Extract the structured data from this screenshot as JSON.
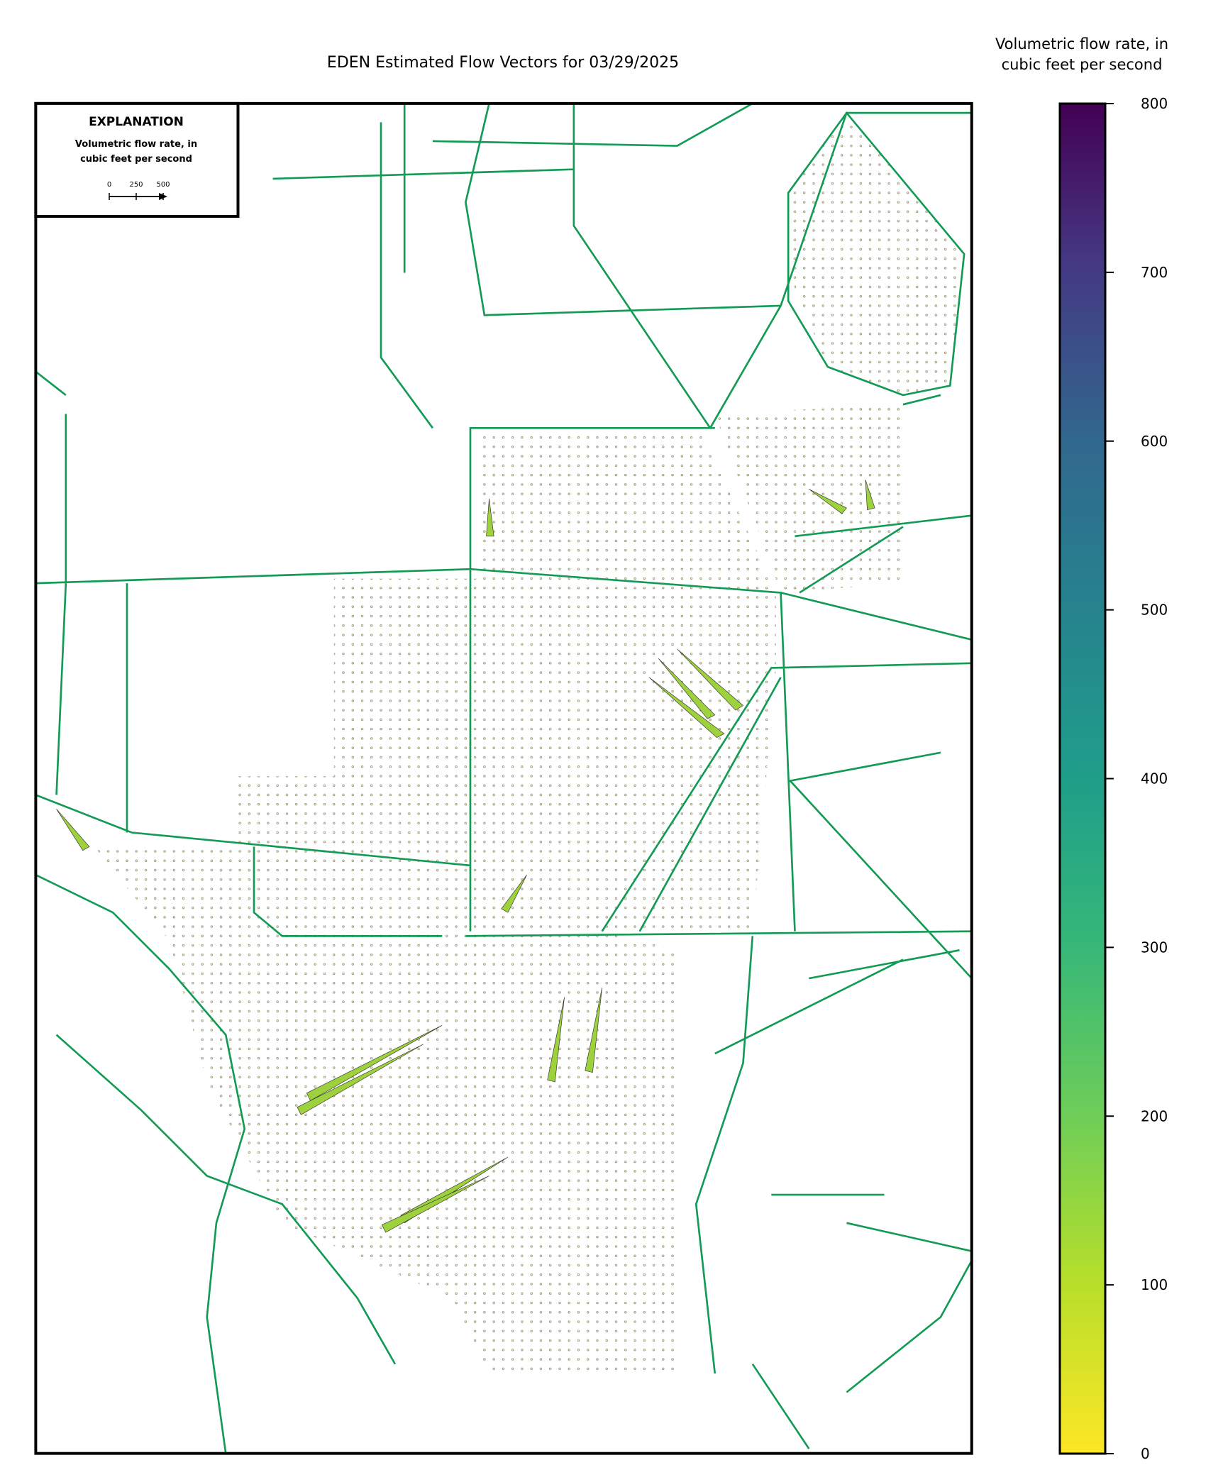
{
  "title": "EDEN Estimated Flow Vectors for 03/29/2025",
  "legend": {
    "title": "EXPLANATION",
    "label": [
      "Volumetric flow rate, in",
      "cubic feet per second"
    ],
    "scale_ticks": [
      0,
      250,
      500
    ]
  },
  "colorbar": {
    "label": [
      "Volumetric flow rate, in",
      "cubic feet per second"
    ],
    "lim": [
      0,
      800
    ],
    "ticks": [
      0,
      100,
      200,
      300,
      400,
      500,
      600,
      700,
      800
    ],
    "colormap": "viridis_r"
  }
}
